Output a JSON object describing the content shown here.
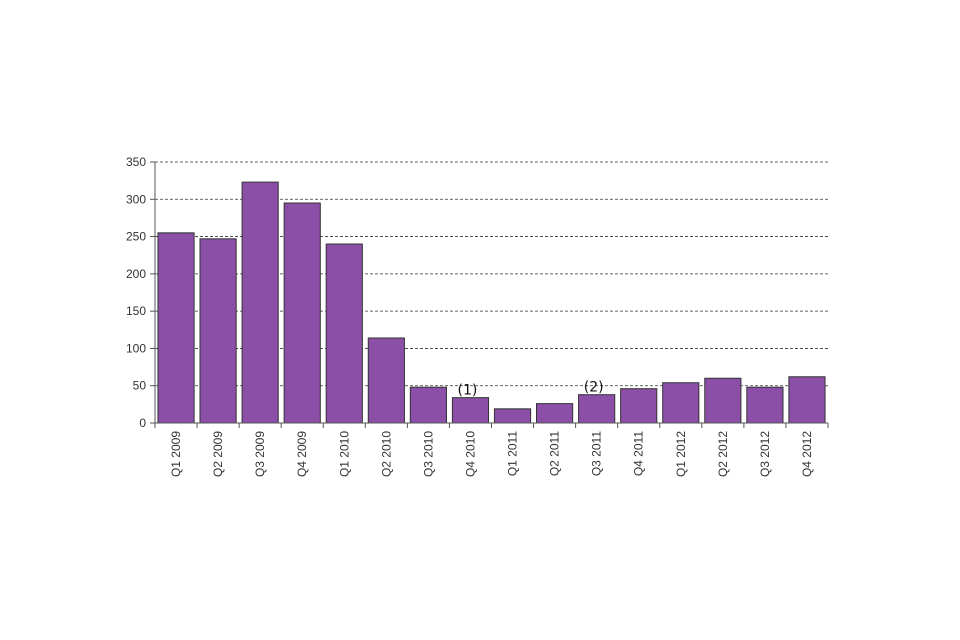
{
  "chart_data": {
    "type": "bar",
    "title": "",
    "xlabel": "",
    "ylabel": "",
    "categories": [
      "Q1 2009",
      "Q2 2009",
      "Q3 2009",
      "Q4 2009",
      "Q1 2010",
      "Q2 2010",
      "Q3 2010",
      "Q4 2010",
      "Q1 2011",
      "Q2 2011",
      "Q3 2011",
      "Q4 2011",
      "Q1 2012",
      "Q2 2012",
      "Q3 2012",
      "Q4 2012"
    ],
    "values": [
      255,
      247,
      323,
      295,
      240,
      114,
      48,
      34,
      19,
      26,
      38,
      46,
      54,
      60,
      48,
      62
    ],
    "ylim": [
      0,
      350
    ],
    "yticks": [
      0,
      50,
      100,
      150,
      200,
      250,
      300,
      350
    ],
    "grid": true,
    "bar_color": "#8b4fa8",
    "annotations": [
      {
        "category": "Q4 2010",
        "text": "(1)"
      },
      {
        "category": "Q3 2011",
        "text": "(2)"
      }
    ]
  }
}
